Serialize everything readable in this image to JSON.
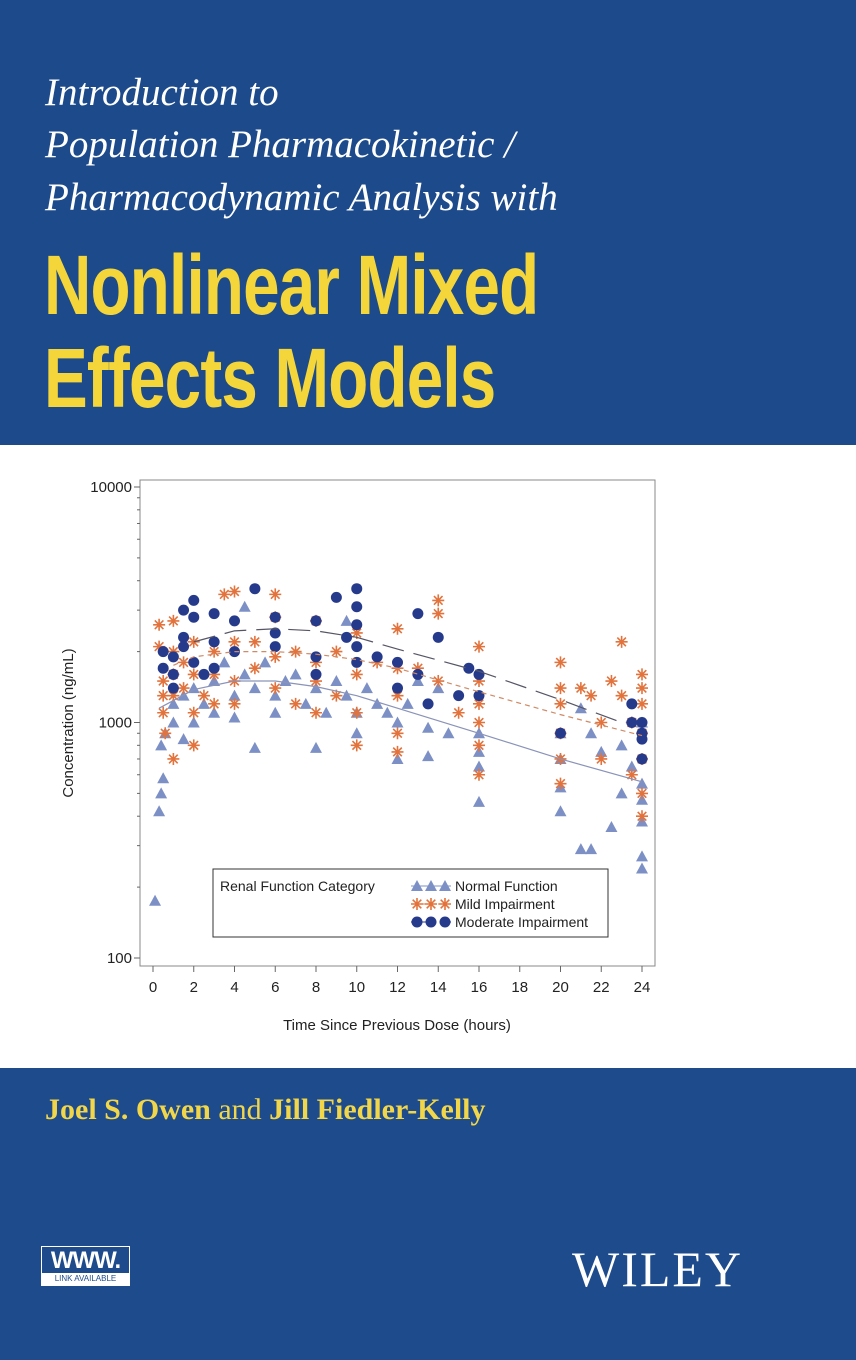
{
  "cover": {
    "subtitle_lines": [
      "Introduction to",
      "Population Pharmacokinetic /",
      "Pharmacodynamic Analysis with"
    ],
    "title_lines": [
      "Nonlinear Mixed",
      "Effects Models"
    ],
    "author1": "Joel S. Owen",
    "author_and": "and",
    "author2": "Jill Fiedler-Kelly",
    "badge_top": "WWW.",
    "badge_bottom": "LINK AVAILABLE",
    "publisher": "WILEY",
    "colors": {
      "blue": "#1c4a8a",
      "yellow": "#f5d63a",
      "white": "#ffffff"
    }
  },
  "chart_data": {
    "type": "scatter",
    "xlabel": "Time Since Previous Dose (hours)",
    "ylabel": "Concentration (ng/mL)",
    "xlim": [
      -0.7,
      24.7
    ],
    "ylim": [
      100,
      10000
    ],
    "yscale": "log",
    "xticks": [
      "0",
      "2",
      "4",
      "6",
      "8",
      "10",
      "12",
      "14",
      "16",
      "18",
      "20",
      "22",
      "24"
    ],
    "yticks": [
      "100",
      "1000",
      "10000"
    ],
    "grid": false,
    "legend": {
      "title": "Renal Function Category",
      "placement": "bottom-center"
    },
    "series": [
      {
        "name": "Normal Function",
        "marker": "triangle",
        "color": "#7d90c6",
        "line": "solid",
        "trend": [
          [
            0.3,
            1150
          ],
          [
            2,
            1380
          ],
          [
            4,
            1500
          ],
          [
            6,
            1500
          ],
          [
            8,
            1420
          ],
          [
            10,
            1300
          ],
          [
            12,
            1150
          ],
          [
            16,
            900
          ],
          [
            20,
            700
          ],
          [
            24,
            560
          ]
        ],
        "points": [
          [
            0.1,
            175
          ],
          [
            0.3,
            420
          ],
          [
            0.4,
            500
          ],
          [
            0.5,
            580
          ],
          [
            0.4,
            800
          ],
          [
            0.6,
            900
          ],
          [
            1,
            1000
          ],
          [
            1,
            1200
          ],
          [
            1.5,
            850
          ],
          [
            1.5,
            1300
          ],
          [
            2,
            1000
          ],
          [
            2,
            1400
          ],
          [
            2.5,
            1200
          ],
          [
            3,
            1500
          ],
          [
            3,
            1100
          ],
          [
            3.5,
            1800
          ],
          [
            4,
            1300
          ],
          [
            4,
            1050
          ],
          [
            4.5,
            3100
          ],
          [
            4.5,
            1600
          ],
          [
            5,
            1400
          ],
          [
            5,
            780
          ],
          [
            5.5,
            1800
          ],
          [
            6,
            1300
          ],
          [
            6,
            1100
          ],
          [
            6.5,
            1500
          ],
          [
            7,
            1600
          ],
          [
            7.5,
            1200
          ],
          [
            8,
            1400
          ],
          [
            8,
            780
          ],
          [
            8.5,
            1100
          ],
          [
            9,
            1500
          ],
          [
            9.5,
            1300
          ],
          [
            9.5,
            2700
          ],
          [
            10,
            900
          ],
          [
            10,
            1100
          ],
          [
            10.5,
            1400
          ],
          [
            11,
            1200
          ],
          [
            11.5,
            1100
          ],
          [
            12,
            1000
          ],
          [
            12,
            700
          ],
          [
            12.5,
            1200
          ],
          [
            13,
            1500
          ],
          [
            13.5,
            950
          ],
          [
            13.5,
            720
          ],
          [
            14,
            1400
          ],
          [
            14.5,
            900
          ],
          [
            16,
            900
          ],
          [
            16,
            750
          ],
          [
            16,
            460
          ],
          [
            16,
            650
          ],
          [
            20,
            900
          ],
          [
            20,
            530
          ],
          [
            20,
            420
          ],
          [
            20,
            700
          ],
          [
            21,
            1150
          ],
          [
            21,
            290
          ],
          [
            21.5,
            290
          ],
          [
            21.5,
            900
          ],
          [
            22,
            750
          ],
          [
            22.5,
            360
          ],
          [
            23,
            500
          ],
          [
            23,
            800
          ],
          [
            23.5,
            650
          ],
          [
            24,
            470
          ],
          [
            24,
            380
          ],
          [
            24,
            270
          ],
          [
            24,
            240
          ],
          [
            24,
            550
          ],
          [
            24,
            1000
          ]
        ]
      },
      {
        "name": "Mild Impairment",
        "marker": "asterisk",
        "color": "#e2733d",
        "line": "dashed",
        "trend": [
          [
            1,
            1750
          ],
          [
            2,
            1900
          ],
          [
            4,
            2000
          ],
          [
            6,
            2000
          ],
          [
            8,
            1950
          ],
          [
            10,
            1850
          ],
          [
            12,
            1700
          ],
          [
            16,
            1350
          ],
          [
            20,
            1080
          ],
          [
            24,
            880
          ]
        ],
        "points": [
          [
            0.3,
            2600
          ],
          [
            0.3,
            2100
          ],
          [
            0.5,
            1500
          ],
          [
            0.5,
            1300
          ],
          [
            0.5,
            1100
          ],
          [
            0.6,
            900
          ],
          [
            1,
            2700
          ],
          [
            1,
            2000
          ],
          [
            1,
            1600
          ],
          [
            1,
            1300
          ],
          [
            1,
            700
          ],
          [
            1.5,
            1800
          ],
          [
            1.5,
            1400
          ],
          [
            2,
            2200
          ],
          [
            2,
            1600
          ],
          [
            2,
            1100
          ],
          [
            2,
            800
          ],
          [
            2.5,
            1300
          ],
          [
            3,
            2000
          ],
          [
            3,
            1600
          ],
          [
            3,
            1200
          ],
          [
            3.5,
            3500
          ],
          [
            4,
            3600
          ],
          [
            4,
            2200
          ],
          [
            4,
            1500
          ],
          [
            4,
            1200
          ],
          [
            5,
            2200
          ],
          [
            5,
            1700
          ],
          [
            6,
            3500
          ],
          [
            6,
            2800
          ],
          [
            6,
            1900
          ],
          [
            6,
            1400
          ],
          [
            7,
            2000
          ],
          [
            7,
            1200
          ],
          [
            8,
            2700
          ],
          [
            8,
            1800
          ],
          [
            8,
            1500
          ],
          [
            8,
            1100
          ],
          [
            9,
            2000
          ],
          [
            9,
            1300
          ],
          [
            10,
            2400
          ],
          [
            10,
            1600
          ],
          [
            10,
            1100
          ],
          [
            10,
            800
          ],
          [
            11,
            1800
          ],
          [
            12,
            2500
          ],
          [
            12,
            1700
          ],
          [
            12,
            1300
          ],
          [
            12,
            900
          ],
          [
            12,
            750
          ],
          [
            13,
            1700
          ],
          [
            14,
            3300
          ],
          [
            14,
            2900
          ],
          [
            14,
            1500
          ],
          [
            15,
            1100
          ],
          [
            16,
            2100
          ],
          [
            16,
            1500
          ],
          [
            16,
            1200
          ],
          [
            16,
            1000
          ],
          [
            16,
            800
          ],
          [
            16,
            600
          ],
          [
            20,
            1800
          ],
          [
            20,
            1400
          ],
          [
            20,
            1200
          ],
          [
            20,
            900
          ],
          [
            20,
            700
          ],
          [
            20,
            550
          ],
          [
            21,
            1400
          ],
          [
            21.5,
            1300
          ],
          [
            22,
            1000
          ],
          [
            22,
            700
          ],
          [
            22.5,
            1500
          ],
          [
            23,
            2200
          ],
          [
            23,
            1300
          ],
          [
            23.5,
            1000
          ],
          [
            23.5,
            600
          ],
          [
            24,
            1600
          ],
          [
            24,
            1400
          ],
          [
            24,
            1200
          ],
          [
            24,
            900
          ],
          [
            24,
            700
          ],
          [
            24,
            500
          ],
          [
            24,
            400
          ]
        ]
      },
      {
        "name": "Moderate Impairment",
        "marker": "circle",
        "color": "#263a8c",
        "line": "longdash",
        "trend": [
          [
            2,
            2200
          ],
          [
            4,
            2450
          ],
          [
            6,
            2500
          ],
          [
            8,
            2450
          ],
          [
            10,
            2300
          ],
          [
            12,
            2050
          ],
          [
            16,
            1650
          ],
          [
            20,
            1250
          ],
          [
            23,
            1000
          ]
        ],
        "points": [
          [
            0.5,
            2000
          ],
          [
            0.5,
            1700
          ],
          [
            1,
            1900
          ],
          [
            1,
            1600
          ],
          [
            1,
            1400
          ],
          [
            1.5,
            3000
          ],
          [
            1.5,
            2300
          ],
          [
            1.5,
            2100
          ],
          [
            2,
            3300
          ],
          [
            2,
            2800
          ],
          [
            2,
            1800
          ],
          [
            2.5,
            1600
          ],
          [
            3,
            2900
          ],
          [
            3,
            2200
          ],
          [
            3,
            1700
          ],
          [
            4,
            2700
          ],
          [
            4,
            2000
          ],
          [
            5,
            3700
          ],
          [
            6,
            2800
          ],
          [
            6,
            2400
          ],
          [
            6,
            2100
          ],
          [
            8,
            2700
          ],
          [
            8,
            1900
          ],
          [
            8,
            1600
          ],
          [
            9,
            3400
          ],
          [
            9.5,
            2300
          ],
          [
            10,
            3700
          ],
          [
            10,
            3100
          ],
          [
            10,
            2600
          ],
          [
            10,
            2100
          ],
          [
            10,
            1800
          ],
          [
            11,
            1900
          ],
          [
            12,
            1800
          ],
          [
            12,
            1400
          ],
          [
            13,
            1600
          ],
          [
            13,
            2900
          ],
          [
            13.5,
            1200
          ],
          [
            14,
            2300
          ],
          [
            15,
            1300
          ],
          [
            15.5,
            1700
          ],
          [
            16,
            1600
          ],
          [
            16,
            1300
          ],
          [
            20,
            900
          ],
          [
            23.5,
            1000
          ],
          [
            23.5,
            1200
          ],
          [
            24,
            1000
          ],
          [
            24,
            850
          ],
          [
            24,
            700
          ],
          [
            24,
            900
          ]
        ]
      }
    ]
  }
}
